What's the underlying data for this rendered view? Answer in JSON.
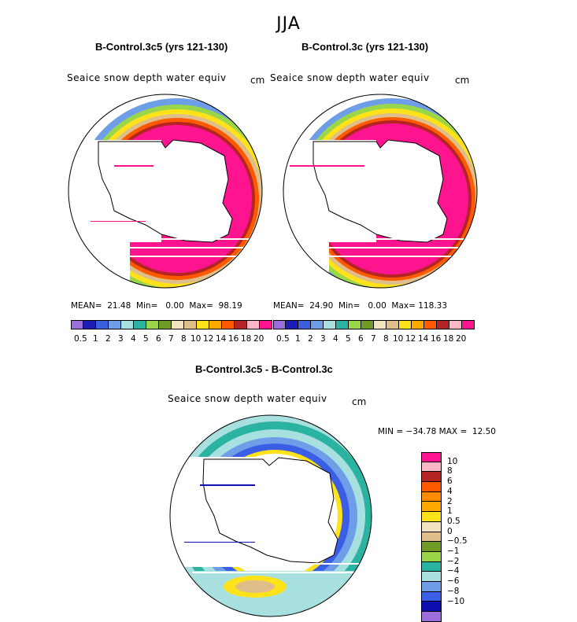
{
  "figure": {
    "season": "JJA",
    "variable": "Seaice snow depth water equiv",
    "units": "cm"
  },
  "colors": {
    "abs_scale": [
      "#9b6fdb",
      "#1d1db5",
      "#3c5fe0",
      "#6f9ee8",
      "#a8e0e0",
      "#2ab3a0",
      "#9ad64a",
      "#6e9a25",
      "#f3e2c0",
      "#dfbe8a",
      "#ffe21a",
      "#ffa800",
      "#ff5a00",
      "#b52424",
      "#ffb6c6",
      "#ff1490"
    ],
    "diff_scale": [
      "#9b6fdb",
      "#0f0fb0",
      "#3a5fe6",
      "#6f9ee8",
      "#a8e0e0",
      "#2ab3a0",
      "#9ad64a",
      "#6e9a25",
      "#dfbe8a",
      "#f3e2c0",
      "#ffe21a",
      "#ffa800",
      "#ff8c00",
      "#ff5a00",
      "#b52424",
      "#ffb6c6",
      "#ff1490"
    ]
  },
  "chart_data": [
    {
      "type": "heatmap",
      "title": "B-Control.3c5 (yrs 121-130)",
      "variable": "Seaice snow depth water equiv",
      "units": "cm",
      "projection": "south polar stereographic",
      "stats": {
        "mean": "21.48",
        "min": "0.00",
        "max": "98.19"
      },
      "stats_text": "MEAN=  21.48  Min=   0.00  Max=  98.19",
      "colorbar_labels": [
        "0.5",
        "1",
        "2",
        "3",
        "4",
        "5",
        "6",
        "7",
        "8",
        "10",
        "12",
        "14",
        "16",
        "18",
        "20"
      ]
    },
    {
      "type": "heatmap",
      "title": "B-Control.3c (yrs 121-130)",
      "variable": "Seaice snow depth water equiv",
      "units": "cm",
      "projection": "south polar stereographic",
      "stats": {
        "mean": "24.90",
        "min": "0.00",
        "max": "118.33"
      },
      "stats_text": "MEAN=  24.90  Min=   0.00  Max= 118.33",
      "colorbar_labels": [
        "0.5",
        "1",
        "2",
        "3",
        "4",
        "5",
        "6",
        "7",
        "8",
        "10",
        "12",
        "14",
        "16",
        "18",
        "20"
      ]
    },
    {
      "type": "heatmap",
      "title": "B-Control.3c5 - B-Control.3c",
      "variable": "Seaice snow depth water equiv",
      "units": "cm",
      "projection": "south polar stereographic",
      "stats": {
        "min": "-34.78",
        "max": "12.50"
      },
      "stats_text": "MIN = −34.78 MAX =  12.50",
      "colorbar_labels": [
        "10",
        "8",
        "6",
        "4",
        "2",
        "1",
        "0.5",
        "0",
        "−0.5",
        "−1",
        "−2",
        "−4",
        "−6",
        "−8",
        "−10"
      ]
    }
  ]
}
